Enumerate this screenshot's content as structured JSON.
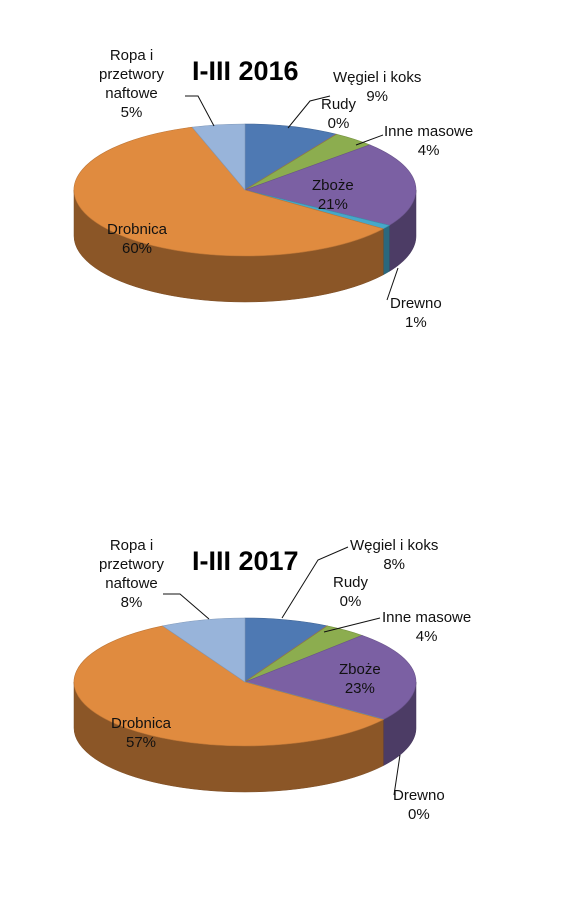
{
  "chart_data": [
    {
      "type": "pie",
      "title": "I-III 2016",
      "series": [
        {
          "category": "Węgiel i koks",
          "value": 9,
          "label_text": "9%",
          "color": "#4e79b3"
        },
        {
          "category": "Rudy",
          "value": 0,
          "label_text": "0%",
          "color": "#c0504d"
        },
        {
          "category": "Inne masowe",
          "value": 4,
          "label_text": "4%",
          "color": "#8cad4f"
        },
        {
          "category": "Zboże",
          "value": 21,
          "label_text": "21%",
          "color": "#7b60a3"
        },
        {
          "category": "Drewno",
          "value": 1,
          "label_text": "1%",
          "color": "#46a8c9"
        },
        {
          "category": "Drobnica",
          "value": 60,
          "label_text": "60%",
          "color": "#e08b3f"
        },
        {
          "category": "Ropa i przetwory naftowe",
          "value": 5,
          "label_text": "5%",
          "color": "#98b4da"
        }
      ],
      "label_lines": {
        "wegiel": [
          "Węgiel i koks",
          "9%"
        ],
        "rudy": [
          "Rudy",
          "0%"
        ],
        "inne": [
          "Inne masowe",
          "4%"
        ],
        "zboze": [
          "Zboże",
          "21%"
        ],
        "drewno": [
          "Drewno",
          "1%"
        ],
        "drobnica": [
          "Drobnica",
          "60%"
        ],
        "ropa": [
          "Ropa i",
          "przetwory",
          "naftowe",
          "5%"
        ]
      }
    },
    {
      "type": "pie",
      "title": "I-III 2017",
      "series": [
        {
          "category": "Węgiel i koks",
          "value": 8,
          "label_text": "8%",
          "color": "#4e79b3"
        },
        {
          "category": "Rudy",
          "value": 0,
          "label_text": "0%",
          "color": "#c0504d"
        },
        {
          "category": "Inne masowe",
          "value": 4,
          "label_text": "4%",
          "color": "#8cad4f"
        },
        {
          "category": "Zboże",
          "value": 23,
          "label_text": "23%",
          "color": "#7b60a3"
        },
        {
          "category": "Drewno",
          "value": 0,
          "label_text": "0%",
          "color": "#46a8c9"
        },
        {
          "category": "Drobnica",
          "value": 57,
          "label_text": "57%",
          "color": "#e08b3f"
        },
        {
          "category": "Ropa i przetwory naftowe",
          "value": 8,
          "label_text": "8%",
          "color": "#98b4da"
        }
      ],
      "label_lines": {
        "wegiel": [
          "Węgiel i koks",
          "8%"
        ],
        "rudy": [
          "Rudy",
          "0%"
        ],
        "inne": [
          "Inne masowe",
          "4%"
        ],
        "zboze": [
          "Zboże",
          "23%"
        ],
        "drewno": [
          "Drewno",
          "0%"
        ],
        "drobnica": [
          "Drobnica",
          "57%"
        ],
        "ropa": [
          "Ropa i",
          "przetwory",
          "naftowe",
          "8%"
        ]
      }
    }
  ]
}
